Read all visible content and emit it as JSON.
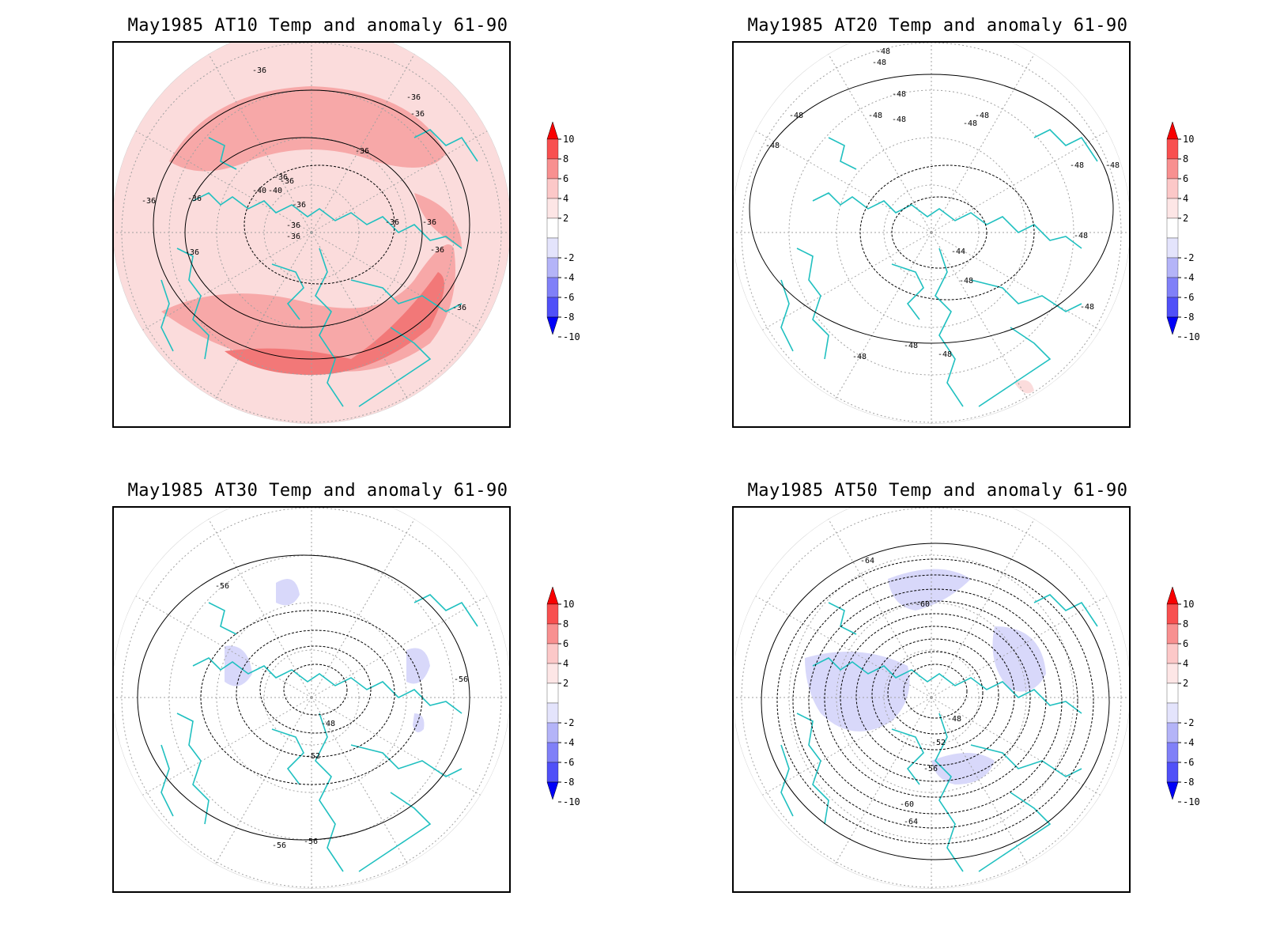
{
  "panels": [
    {
      "title": "May1985 AT10 Temp and anomaly 61-90",
      "level": "AT10",
      "background_anomaly_color": "#fbdcdc",
      "contour_labels": [
        "-36",
        "-36",
        "-36",
        "-36",
        "-36",
        "-36",
        "-36",
        "-36",
        "-36",
        "-36",
        "-40",
        "-40",
        "-36",
        "-36",
        "-36",
        "-36",
        "-36",
        "-36"
      ]
    },
    {
      "title": "May1985 AT20 Temp and anomaly 61-90",
      "level": "AT20",
      "background_anomaly_color": "#ffffff",
      "contour_labels": [
        "-48",
        "-48",
        "-48",
        "-48",
        "-48",
        "-48",
        "-48",
        "-48",
        "-48",
        "-44",
        "-48",
        "-48",
        "-48",
        "-48",
        "-48",
        "-48",
        "-48",
        "-48"
      ]
    },
    {
      "title": "May1985 AT30 Temp and anomaly 61-90",
      "level": "AT30",
      "background_anomaly_color": "#ffffff",
      "contour_labels": [
        "-56",
        "-56",
        "-48",
        "-52",
        "-56",
        "-56"
      ]
    },
    {
      "title": "May1985 AT50 Temp and anomaly 61-90",
      "level": "AT50",
      "background_anomaly_color": "#ffffff",
      "contour_labels": [
        "-64",
        "-60",
        "-48",
        "-52",
        "-56",
        "-60",
        "-64"
      ]
    }
  ],
  "colorbar": {
    "levels": [
      "10",
      "8",
      "6",
      "4",
      "2",
      "-2",
      "-4",
      "-6",
      "-8",
      "-10"
    ],
    "colors": [
      "#f80000",
      "#f85050",
      "#f89090",
      "#fcc8c8",
      "#fde6e6",
      "#ffffff",
      "#e4e4fc",
      "#b4b4f8",
      "#8080f8",
      "#5050f8",
      "#0000f8"
    ],
    "top_arrow_color": "#f80000",
    "bottom_arrow_color": "#0000f8"
  },
  "colors": {
    "coastline": "#20c0c0",
    "contour": "#000000",
    "graticule": "#a0a0a0",
    "positive_anomaly_light": "#fbdcdc",
    "positive_anomaly_medium": "#f7a8a8",
    "positive_anomaly_strong": "#f27878",
    "negative_anomaly_light": "#d8d8fa"
  },
  "legend_icons": [
    "triangle-up-icon",
    "triangle-down-icon"
  ]
}
